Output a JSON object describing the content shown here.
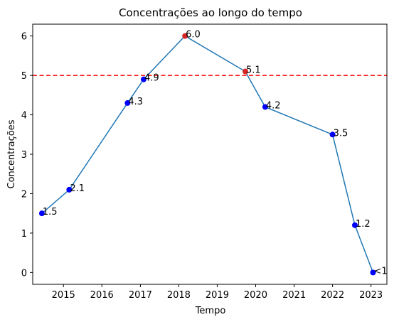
{
  "chart_data": {
    "type": "line",
    "title": "Concentrações ao longo do tempo",
    "xlabel": "Tempo",
    "ylabel": "Concentrações",
    "x_ticks": [
      "2015",
      "2016",
      "2017",
      "2018",
      "2019",
      "2020",
      "2021",
      "2022",
      "2023"
    ],
    "y_ticks": [
      "0",
      "1",
      "2",
      "3",
      "4",
      "5",
      "6"
    ],
    "xlim": [
      "2014-03-15",
      "2023-06-01"
    ],
    "ylim": [
      -0.3,
      6.3
    ],
    "threshold": 5,
    "colors": {
      "line": "#1f77b4",
      "point_normal": "#0000ff",
      "point_above": "#d62728",
      "threshold": "#ff0000"
    },
    "series": [
      {
        "points": [
          {
            "date": "2014-06-10",
            "value": 1.5,
            "label": "1.5"
          },
          {
            "date": "2015-02-25",
            "value": 2.1,
            "label": "2.1"
          },
          {
            "date": "2016-09-01",
            "value": 4.3,
            "label": "4.3"
          },
          {
            "date": "2017-02-01",
            "value": 4.9,
            "label": "4.9"
          },
          {
            "date": "2018-03-01",
            "value": 6.0,
            "label": "6.0"
          },
          {
            "date": "2019-09-25",
            "value": 5.1,
            "label": "5.1"
          },
          {
            "date": "2020-04-01",
            "value": 4.2,
            "label": "4.2"
          },
          {
            "date": "2022-01-01",
            "value": 3.5,
            "label": "3.5"
          },
          {
            "date": "2022-08-01",
            "value": 1.2,
            "label": "1.2"
          },
          {
            "date": "2023-01-20",
            "value": 0.0,
            "label": "<1"
          }
        ]
      }
    ]
  }
}
